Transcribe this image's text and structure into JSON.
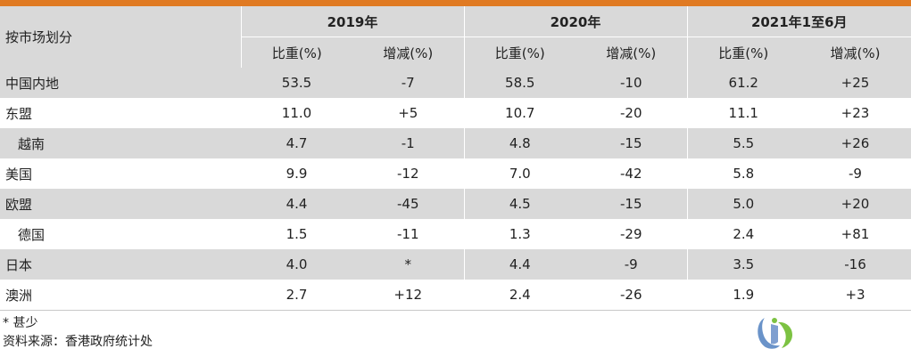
{
  "table": {
    "market_header": "按市场划分",
    "periods": [
      "2019年",
      "2020年",
      "2021年1至6月"
    ],
    "sub_headers": [
      "比重(%)",
      "增减(%)"
    ],
    "rows": [
      {
        "name": "中国内地",
        "indent": false,
        "values": [
          "53.5",
          "-7",
          "58.5",
          "-10",
          "61.2",
          "+25"
        ]
      },
      {
        "name": "东盟",
        "indent": false,
        "values": [
          "11.0",
          "+5",
          "10.7",
          "-20",
          "11.1",
          "+23"
        ]
      },
      {
        "name": "越南",
        "indent": true,
        "values": [
          "4.7",
          "-1",
          "4.8",
          "-15",
          "5.5",
          "+26"
        ]
      },
      {
        "name": "美国",
        "indent": false,
        "values": [
          "9.9",
          "-12",
          "7.0",
          "-42",
          "5.8",
          "-9"
        ]
      },
      {
        "name": "欧盟",
        "indent": false,
        "values": [
          "4.4",
          "-45",
          "4.5",
          "-15",
          "5.0",
          "+20"
        ]
      },
      {
        "name": "德国",
        "indent": true,
        "values": [
          "1.5",
          "-11",
          "1.3",
          "-29",
          "2.4",
          "+81"
        ]
      },
      {
        "name": "日本",
        "indent": false,
        "values": [
          "4.0",
          "*",
          "4.4",
          "-9",
          "3.5",
          "-16"
        ]
      },
      {
        "name": "澳洲",
        "indent": false,
        "values": [
          "2.7",
          "+12",
          "2.4",
          "-26",
          "1.9",
          "+3"
        ]
      }
    ]
  },
  "notes": {
    "footnote": "* 甚少",
    "source": "资料来源：香港政府统计处"
  },
  "colors": {
    "accent_bar": "#e07a22",
    "stripe": "#d9d9d9",
    "logo_blue": "#6a93c9",
    "logo_green": "#7cc242"
  },
  "logo": {
    "icon": "organization-logo-icon"
  },
  "chart_data": {
    "type": "table",
    "columns": [
      "按市场划分",
      "2019年 比重(%)",
      "2019年 增减(%)",
      "2020年 比重(%)",
      "2020年 增减(%)",
      "2021年1至6月 比重(%)",
      "2021年1至6月 增减(%)"
    ],
    "rows": [
      [
        "中国内地",
        "53.5",
        "-7",
        "58.5",
        "-10",
        "61.2",
        "+25"
      ],
      [
        "东盟",
        "11.0",
        "+5",
        "10.7",
        "-20",
        "11.1",
        "+23"
      ],
      [
        "越南",
        "4.7",
        "-1",
        "4.8",
        "-15",
        "5.5",
        "+26"
      ],
      [
        "美国",
        "9.9",
        "-12",
        "7.0",
        "-42",
        "5.8",
        "-9"
      ],
      [
        "欧盟",
        "4.4",
        "-45",
        "4.5",
        "-15",
        "5.0",
        "+20"
      ],
      [
        "德国",
        "1.5",
        "-11",
        "1.3",
        "-29",
        "2.4",
        "+81"
      ],
      [
        "日本",
        "4.0",
        "*",
        "4.4",
        "-9",
        "3.5",
        "-16"
      ],
      [
        "澳洲",
        "2.7",
        "+12",
        "2.4",
        "-26",
        "1.9",
        "+3"
      ]
    ]
  }
}
